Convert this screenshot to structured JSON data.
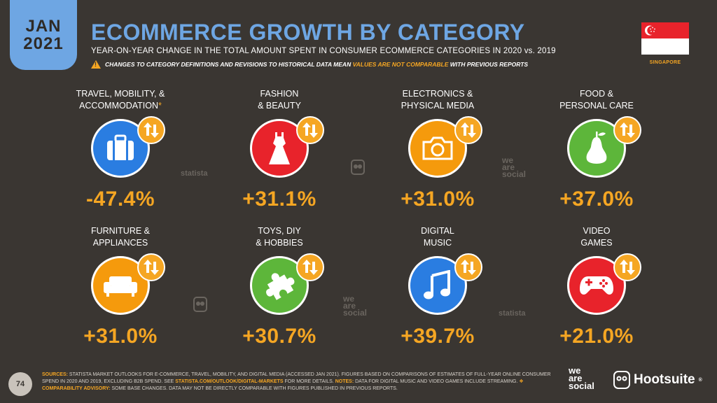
{
  "header": {
    "month": "JAN",
    "year": "2021",
    "title": "ECOMMERCE GROWTH BY CATEGORY",
    "subtitle": "YEAR-ON-YEAR CHANGE IN THE TOTAL AMOUNT SPENT IN CONSUMER ECOMMERCE CATEGORIES IN 2020 vs. 2019",
    "advisory_pre": "CHANGES TO CATEGORY DEFINITIONS AND REVISIONS TO HISTORICAL DATA MEAN",
    "advisory_hl": "VALUES ARE NOT COMPARABLE",
    "advisory_post": "WITH PREVIOUS REPORTS",
    "country": "SINGAPORE"
  },
  "colors": {
    "accent_blue": "#6ea6e3",
    "accent_orange": "#f5a623",
    "bg": "#3a3632"
  },
  "categories": [
    {
      "line1": "TRAVEL, MOBILITY, &",
      "line2": "ACCOMMODATION",
      "asterisk": "*",
      "value": "-47.4%",
      "icon": "suitcase-icon",
      "color": "#2a7de1"
    },
    {
      "line1": "FASHION",
      "line2": "& BEAUTY",
      "asterisk": "",
      "value": "+31.1%",
      "icon": "dress-icon",
      "color": "#e8232b"
    },
    {
      "line1": "ELECTRONICS &",
      "line2": "PHYSICAL MEDIA",
      "asterisk": "",
      "value": "+31.0%",
      "icon": "camera-icon",
      "color": "#f59a0c"
    },
    {
      "line1": "FOOD &",
      "line2": "PERSONAL CARE",
      "asterisk": "",
      "value": "+37.0%",
      "icon": "pear-icon",
      "color": "#5db63a"
    },
    {
      "line1": "FURNITURE &",
      "line2": "APPLIANCES",
      "asterisk": "",
      "value": "+31.0%",
      "icon": "sofa-icon",
      "color": "#f59a0c"
    },
    {
      "line1": "TOYS, DIY",
      "line2": "& HOBBIES",
      "asterisk": "",
      "value": "+30.7%",
      "icon": "puzzle-icon",
      "color": "#5db63a"
    },
    {
      "line1": "DIGITAL",
      "line2": "MUSIC",
      "asterisk": "",
      "value": "+39.7%",
      "icon": "music-note-icon",
      "color": "#2a7de1"
    },
    {
      "line1": "VIDEO",
      "line2": "GAMES",
      "asterisk": "",
      "value": "+21.0%",
      "icon": "gamepad-icon",
      "color": "#e8232b"
    }
  ],
  "watermarks": {
    "statista": "statista",
    "was1": "we",
    "was2": "are",
    "was3": "social"
  },
  "footer": {
    "page": "74",
    "sources_key": "SOURCES:",
    "sources_text": "STATISTA MARKET OUTLOOKS FOR E-COMMERCE, TRAVEL, MOBILITY, AND DIGITAL MEDIA (ACCESSED JAN 2021). FIGURES BASED ON COMPARISONS OF ESTIMATES OF FULL-YEAR ONLINE CONSUMER SPEND IN 2020 AND 2019, EXCLUDING B2B SPEND. SEE",
    "link": "STATISTA.COM/OUTLOOK/DIGITAL-MARKETS",
    "sources_text2": "FOR MORE DETAILS.",
    "notes_key": "NOTES:",
    "notes_text": "DATA FOR DIGITAL MUSIC AND VIDEO GAMES INCLUDE STREAMING.",
    "advisory_key": "❖ COMPARABILITY ADVISORY:",
    "advisory_text": "SOME BASE CHANGES. DATA MAY NOT BE DIRECTLY COMPARABLE WITH FIGURES PUBLISHED IN PREVIOUS REPORTS.",
    "logo_was1": "we",
    "logo_was2": "are",
    "logo_was3": "social",
    "logo_hs": "Hootsuite",
    "logo_hs_mark": "®"
  }
}
